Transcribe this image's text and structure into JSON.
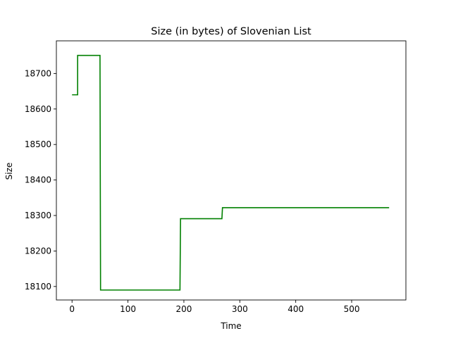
{
  "chart_data": {
    "type": "line",
    "title": "Size (in bytes) of Slovenian List",
    "xlabel": "Time",
    "ylabel": "Size",
    "xlim": [
      -28,
      597
    ],
    "ylim": [
      18062,
      18792
    ],
    "xticks": [
      0,
      100,
      200,
      300,
      400,
      500
    ],
    "yticks": [
      18100,
      18200,
      18300,
      18400,
      18500,
      18600,
      18700
    ],
    "grid": false,
    "legend": "none",
    "series": [
      {
        "color": "#008000",
        "x": [
          0,
          10,
          10,
          50,
          51,
          193,
          194,
          268,
          269,
          567
        ],
        "y": [
          18640,
          18640,
          18751,
          18751,
          18090,
          18090,
          18291,
          18291,
          18322,
          18322
        ]
      }
    ]
  }
}
